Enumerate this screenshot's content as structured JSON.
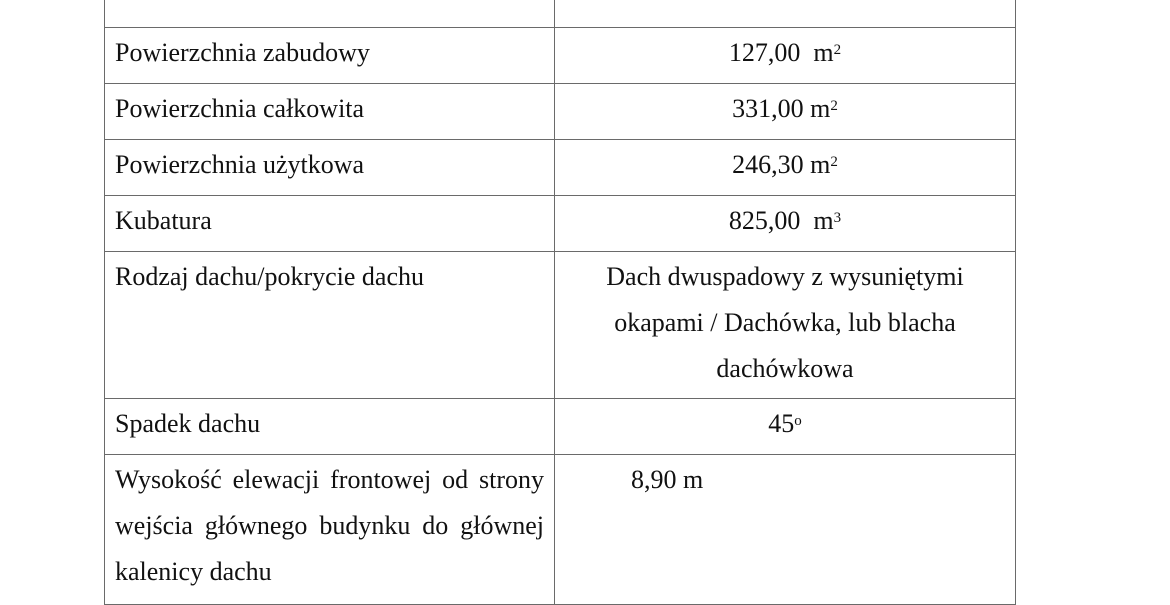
{
  "table": {
    "rows": [
      {
        "label": "",
        "value": ""
      },
      {
        "label": "Powierzchnia zabudowy",
        "value": "127,00  m",
        "sup": "2"
      },
      {
        "label": "Powierzchnia całkowita",
        "value": "331,00 m",
        "sup": "2"
      },
      {
        "label": "Powierzchnia użytkowa",
        "value": "246,30 m",
        "sup": "2"
      },
      {
        "label": "Kubatura",
        "value": "825,00  m",
        "sup": "3"
      },
      {
        "label": "Rodzaj dachu/pokrycie dachu",
        "value": "Dach dwuspadowy z wysuniętymi okapami / Dachówka, lub blacha dachówkowa"
      },
      {
        "label": "Spadek dachu",
        "value": "45",
        "sup": "o"
      },
      {
        "label": "Wysokość elewacji frontowej od strony wejścia głównego budynku do głównej kalenicy dachu",
        "value": "8,90 m"
      }
    ]
  }
}
